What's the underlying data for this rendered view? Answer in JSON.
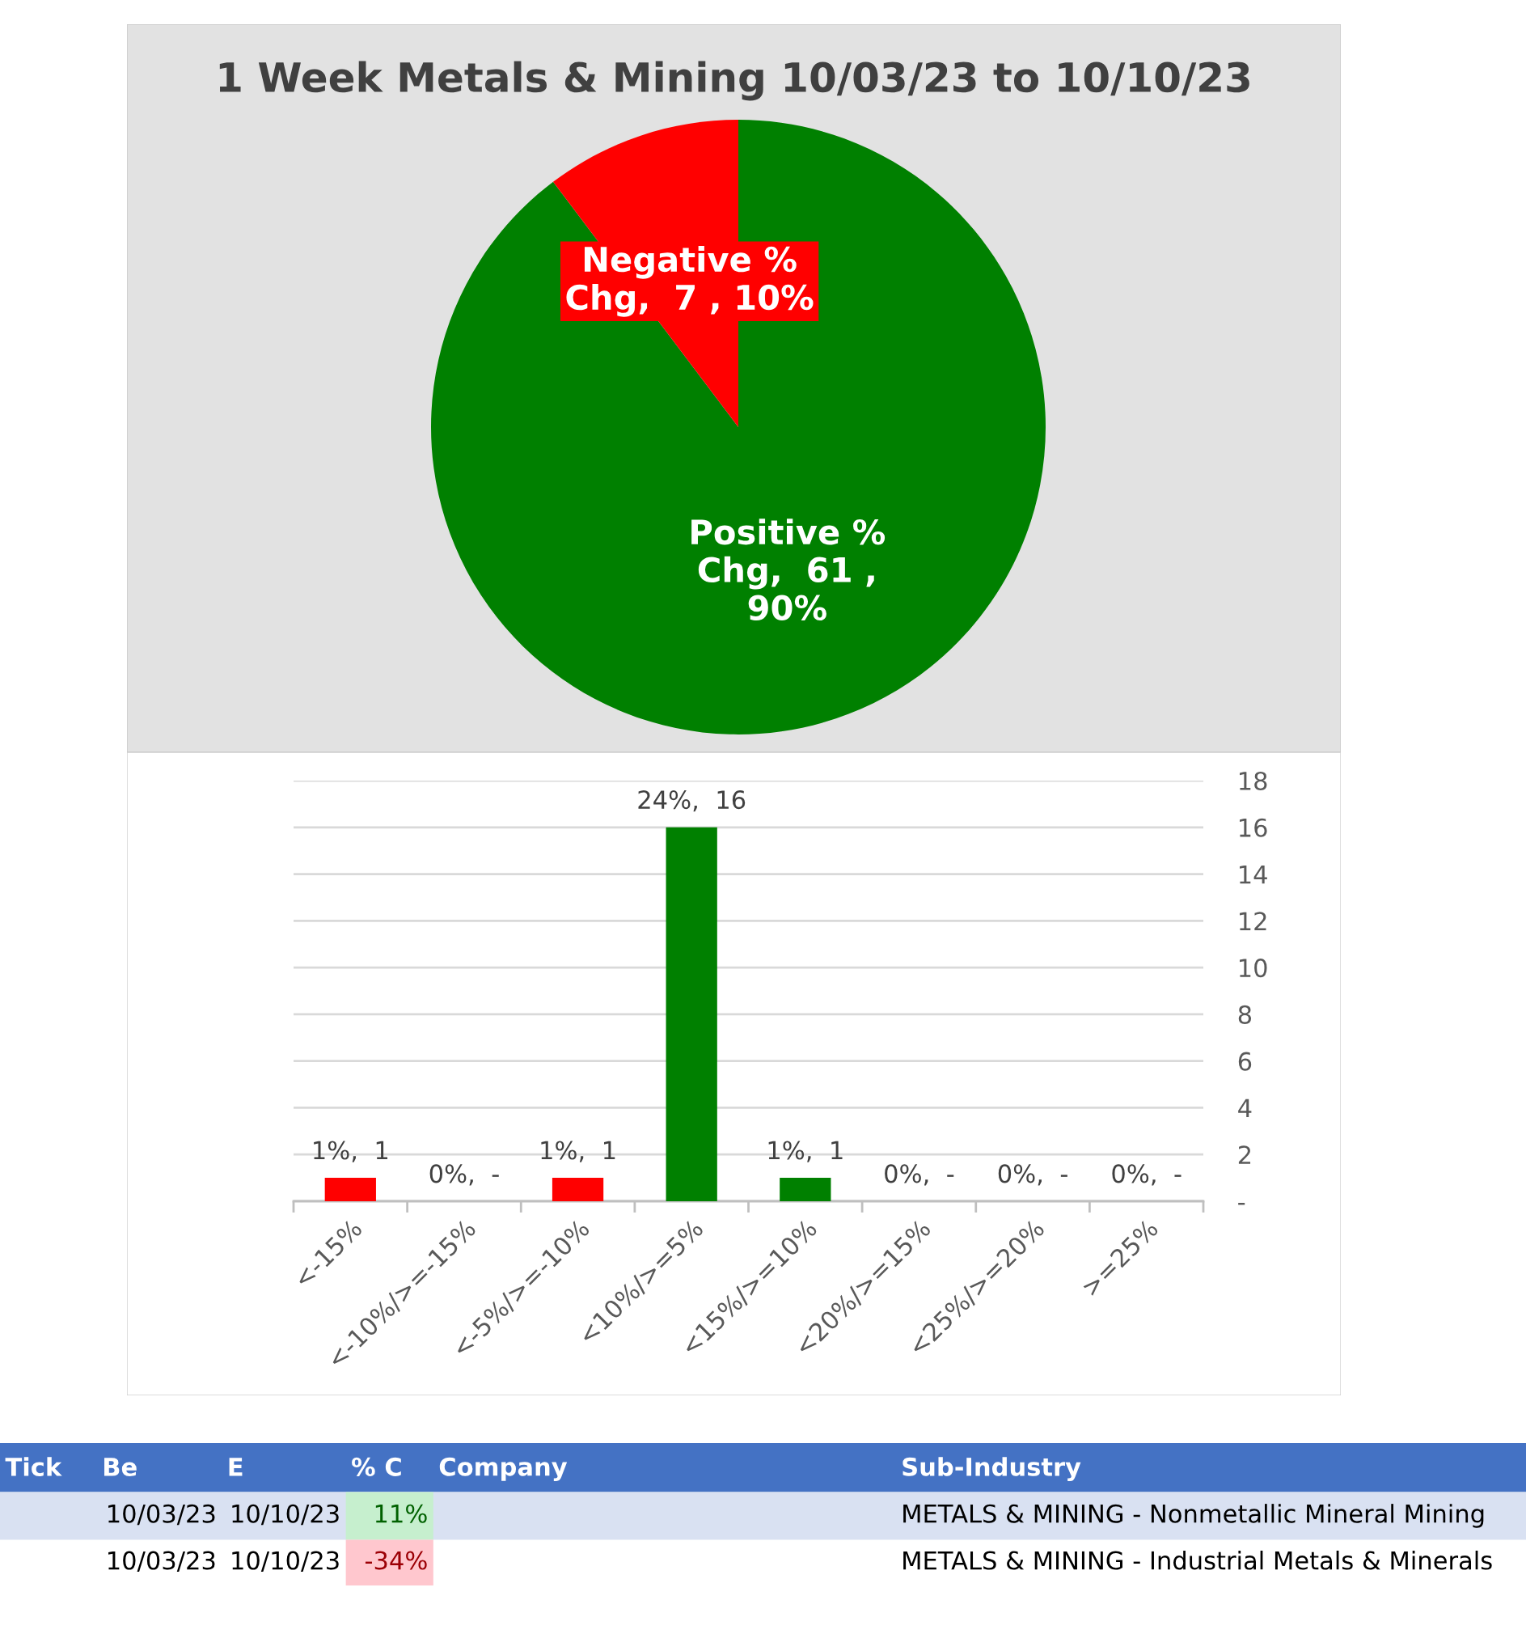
{
  "chart_data": [
    {
      "type": "pie",
      "title": "1 Week Metals & Mining 10/03/23 to 10/10/23",
      "categories": [
        "Positive % Chg",
        "Negative % Chg"
      ],
      "values": [
        61,
        7
      ],
      "colors": [
        "#008000",
        "#ff0000"
      ],
      "value_labels": [
        "61 , 90%",
        "7 , 10%"
      ]
    },
    {
      "type": "bar",
      "categories": [
        "<-15%",
        "<-10%/>=-15%",
        "<-5%/>=-10%",
        "<10%/>=5%",
        "<15%/>=10%",
        "<20%/>=15%",
        "<25%/>=20%",
        ">=25%"
      ],
      "values": [
        1,
        0,
        1,
        16,
        1,
        0,
        0,
        0
      ],
      "colors": [
        "#ff0000",
        "#ff0000",
        "#ff0000",
        "#008000",
        "#008000",
        "#008000",
        "#008000",
        "#008000"
      ],
      "value_labels": [
        "1%,  1",
        "0%,  -",
        "1%,  1",
        "24%,  16",
        "1%,  1",
        "0%,  -",
        "0%,  -",
        "0%,  -"
      ],
      "ylim": [
        0,
        18
      ],
      "yticks": [
        {
          "value": 0,
          "label": "-"
        },
        2,
        4,
        6,
        8,
        10,
        12,
        14,
        16,
        18
      ],
      "grid": "y"
    },
    {
      "type": "other",
      "categories": [
        "Tick",
        "Be",
        "E",
        "% C",
        "Company",
        "Sub-Industry"
      ],
      "cell_labels": [
        [
          null,
          "10/03/23",
          "10/10/23",
          "11%",
          null,
          "METALS & MINING - Nonmetallic Mineral Mining"
        ],
        [
          null,
          "10/03/23",
          "10/10/23",
          "-34%",
          null,
          "METALS & MINING - Industrial Metals & Minerals"
        ]
      ]
    }
  ]
}
